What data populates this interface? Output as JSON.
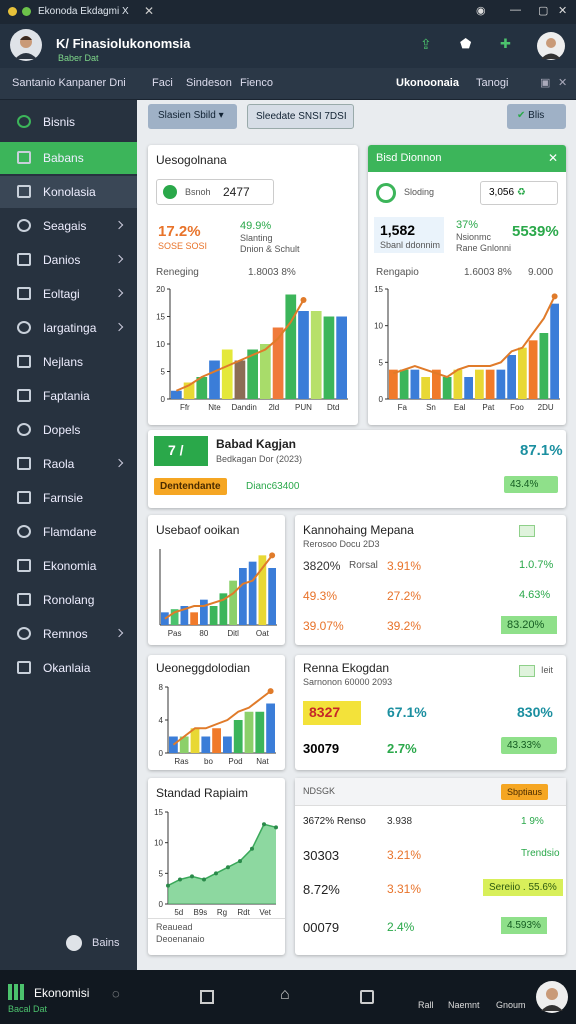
{
  "window": {
    "title": "Ekonoda Ekdagmi X"
  },
  "header": {
    "title": "K/ Finasiolukonomsia",
    "subtitle": "Baber Dat"
  },
  "tabs": [
    "Santanio Kanpaner Dni",
    "Faci",
    "Sindeson",
    "Fienco"
  ],
  "tabs_right": [
    "Ukonoonaia",
    "Tanogi"
  ],
  "sidebar": {
    "items": [
      {
        "label": "Bisnis",
        "arrow": false
      },
      {
        "label": "Babans",
        "arrow": false
      },
      {
        "label": "Konolasia",
        "arrow": false
      },
      {
        "label": "Seagais",
        "arrow": true
      },
      {
        "label": "Danios",
        "arrow": true
      },
      {
        "label": "Eoltagi",
        "arrow": true
      },
      {
        "label": "Iargatinga",
        "arrow": true
      },
      {
        "label": "Nejlans",
        "arrow": false
      },
      {
        "label": "Faptania",
        "arrow": false
      },
      {
        "label": "Dopels",
        "arrow": false
      },
      {
        "label": "Raola",
        "arrow": true
      },
      {
        "label": "Farnsie",
        "arrow": false
      },
      {
        "label": "Flamdane",
        "arrow": false
      },
      {
        "label": "Ekonomia",
        "arrow": false
      },
      {
        "label": "Ronolang",
        "arrow": false
      },
      {
        "label": "Remnos",
        "arrow": true
      },
      {
        "label": "Okanlaia",
        "arrow": false
      }
    ],
    "footer": "Bains"
  },
  "toolbar": {
    "filter1": "Slasien Sbild",
    "filter2": "Sleedate SNSI 7DSI",
    "action": "Blis"
  },
  "cards": [
    {
      "title": "Uesogolnana",
      "search_label": "Bsnoh",
      "search_value": "2477",
      "stat1": "17.2%",
      "note1": "SOSE SOSI",
      "stat2": "49.9%",
      "note2a": "Slanting",
      "note2b": "Dnion & Schult",
      "row_label": "Reneging",
      "row_value": "1.8003 8%",
      "chart": {
        "type": "bar",
        "ylim": [
          0,
          20
        ],
        "yticks": [
          0,
          5,
          10,
          15,
          20
        ],
        "values": [
          1.5,
          3,
          4,
          7,
          9,
          7,
          9,
          10,
          13,
          19,
          16,
          16,
          15,
          15
        ],
        "colors": [
          "#3b7dd8",
          "#e8d834",
          "#3cb55a",
          "#3b7dd8",
          "#e4e83a",
          "#8c6d55",
          "#3cb55a",
          "#a8dc6a",
          "#f07a3a",
          "#3cb55a",
          "#3b7dd8",
          "#b7e06a",
          "#3cb55a",
          "#3b7dd8"
        ],
        "trend": [
          1.5,
          2.5,
          4,
          5,
          6,
          7,
          8,
          9,
          11,
          14,
          18
        ],
        "trend_color": "#e07b2a",
        "xlabels": [
          "Ffr",
          "Nte",
          "Dandin",
          "2ld",
          "PUN",
          "Dtd"
        ]
      }
    },
    {
      "title": "Bisd Dionnon",
      "search_label": "Sloding",
      "box_value": "3,056",
      "stat1": "1,582",
      "note1": "Sbanl ddonnim",
      "stat2": "37%",
      "note2a": "Nsionmc",
      "note2b": "Rane Gnlonni",
      "stat3": "5539%",
      "row_label": "Rengapio",
      "row_value": "1.6003 8%",
      "row_value2": "9.000",
      "chart": {
        "type": "bar",
        "ylim": [
          0,
          15
        ],
        "yticks": [
          0,
          5,
          10,
          15
        ],
        "values": [
          4,
          4,
          4,
          3,
          4,
          3,
          4,
          3,
          4,
          4,
          4,
          6,
          7,
          8,
          9,
          13
        ],
        "colors": [
          "#f07a2a",
          "#3cb55a",
          "#3b7dd8",
          "#e8d834",
          "#f07a2a",
          "#3cb55a",
          "#e8d834",
          "#3b7dd8",
          "#e8d834",
          "#f07a2a",
          "#3b7dd8",
          "#3b7dd8",
          "#e8d834",
          "#f07a2a",
          "#3cb55a",
          "#3b7dd8"
        ],
        "trend": [
          3.5,
          4,
          4.5,
          4,
          3.5,
          3,
          4,
          4.5,
          4.5,
          4.5,
          5,
          6.5,
          7,
          9,
          11,
          14
        ],
        "trend_color": "#e07b2a",
        "xlabels": [
          "Fa",
          "Sn",
          "Eal",
          "Pat",
          "Foo",
          "2DU"
        ]
      }
    },
    {
      "title": "Usebaof ooikan",
      "chart": {
        "type": "bar",
        "ylim": [
          0,
          12
        ],
        "values": [
          2,
          2.5,
          3,
          2,
          4,
          3,
          5,
          7,
          9,
          10,
          11,
          9
        ],
        "colors": [
          "#3b7dd8",
          "#4cc26d",
          "#3b7dd8",
          "#f07a2a",
          "#3b7dd8",
          "#3cb55a",
          "#3cb55a",
          "#8cd06a",
          "#3b7dd8",
          "#3b7dd8",
          "#e8d834",
          "#3b7dd8"
        ],
        "trend": [
          1,
          2,
          2.5,
          3,
          3,
          3.5,
          4,
          5,
          6.5,
          7,
          9,
          11
        ],
        "trend_color": "#e07b2a",
        "xlabels": [
          "Pas",
          "80",
          "Ditl",
          "Oat"
        ]
      }
    },
    {
      "title": "Ueoneggdolodian",
      "chart": {
        "type": "bar",
        "ylim": [
          0,
          8
        ],
        "yticks": [
          0,
          4,
          8
        ],
        "values": [
          2,
          2,
          3,
          2,
          3,
          2,
          4,
          5,
          5,
          6
        ],
        "colors": [
          "#3b7dd8",
          "#8cd06a",
          "#e8d834",
          "#3b7dd8",
          "#f07a2a",
          "#3b7dd8",
          "#3cb55a",
          "#8cd06a",
          "#3cb55a",
          "#3b7dd8"
        ],
        "trend": [
          1,
          2,
          3,
          3,
          3.5,
          4,
          5,
          5.5,
          6.5,
          7.5
        ],
        "trend_color": "#e07b2a",
        "xlabels": [
          "Ras",
          "bo",
          "Pod",
          "Nat"
        ]
      }
    },
    {
      "title": "Standad Rapiaim",
      "foot1": "Reauead",
      "foot2": "Deoenanaio",
      "chart": {
        "type": "area",
        "ylim": [
          0,
          15
        ],
        "yticks": [
          0,
          5,
          10,
          15
        ],
        "values": [
          3,
          4,
          4.5,
          4,
          5,
          6,
          7,
          9,
          13,
          12.5
        ],
        "color": "#5cc878",
        "xlabels": [
          "5d",
          "B9s",
          "Rg",
          "Rdt",
          "Vet"
        ]
      }
    },
    {
      "title": "Kannohaing Mepana",
      "subtitle": "Rerosoo Docu 2D3",
      "rows": [
        [
          "3820%",
          "Rorsal",
          "3.91%",
          "1.0.7%"
        ],
        [
          "49.3%",
          "",
          "27.2%",
          "4.63%"
        ],
        [
          "39.07%",
          "",
          "39.2%",
          "83.20%"
        ]
      ]
    },
    {
      "title": "Renna Ekogdan",
      "subtitle": "Sarnonon 60000 2093",
      "badge": "Ieit",
      "rows": [
        [
          "8327",
          "67.1%",
          "830%"
        ],
        [
          "30079",
          "2.7%",
          "43.33%"
        ]
      ]
    },
    {
      "title": "NDSGK",
      "tag": "Sbptiaus",
      "rows": [
        [
          "3672% Renso",
          "3.938",
          "1 9%"
        ],
        [
          "30303",
          "3.21%",
          "Trendsio"
        ],
        [
          "8.72%",
          "3.31%",
          "Sereiio . 55.6%"
        ],
        [
          "00079",
          "2.4%",
          "4.593%"
        ]
      ]
    }
  ],
  "banner": {
    "badge": "7 /",
    "title": "Babad Kagjan",
    "subtitle": "Bedkagan Dor (2023)",
    "value": "87.1%",
    "tag": "Dentendante",
    "note": "Dianc63400",
    "value2": "43.4%"
  },
  "taskbar": {
    "title": "Ekonomisi",
    "subtitle": "Bacal Dat",
    "items": [
      "Rall",
      "Naemnt",
      "Gnoum"
    ]
  }
}
